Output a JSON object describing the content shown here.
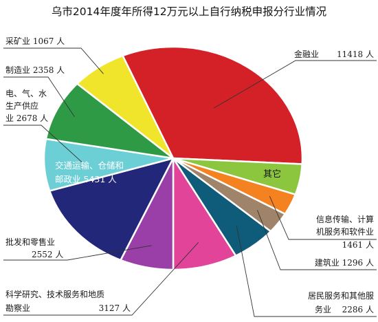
{
  "chart_data": {
    "type": "pie",
    "title": "乌市2014年度年所得12万元以上自行纳税申报分行业情况",
    "unit": "人",
    "slices": [
      {
        "key": "finance",
        "label": "金融业",
        "value": 11418,
        "color": "#d42027"
      },
      {
        "key": "other",
        "label": "其它",
        "value": null,
        "color": "#8cc63f"
      },
      {
        "key": "it",
        "label": "信息传输、计算机服务和软件业",
        "value": 1461,
        "color": "#f58220"
      },
      {
        "key": "construct",
        "label": "建筑业",
        "value": 1296,
        "color": "#a0846a"
      },
      {
        "key": "resident",
        "label": "居民服务和其他服务业",
        "value": 2286,
        "color": "#0f5b7a"
      },
      {
        "key": "science",
        "label": "科学研究、技术服务和地质勘察业",
        "value": 3127,
        "color": "#e2449a"
      },
      {
        "key": "wholesale",
        "label": "批发和零售业",
        "value": 2552,
        "color": "#9b3fa8"
      },
      {
        "key": "transport",
        "label": "交通运输、仓储和邮政业",
        "value": 5431,
        "color": "#23277a"
      },
      {
        "key": "utility",
        "label": "电、气、水生产供应业",
        "value": 2678,
        "color": "#6dcfd6"
      },
      {
        "key": "manufact",
        "label": "制造业",
        "value": 2358,
        "color": "#2f9a46"
      },
      {
        "key": "mining",
        "label": "采矿业",
        "value": 1067,
        "color": "#f0e52a"
      }
    ]
  },
  "labels": {
    "mining": [
      "采矿业  1067 人"
    ],
    "manufact": [
      "制造业  2358 人"
    ],
    "utility": [
      "电、气、水",
      "生产供应",
      "业 2678 人"
    ],
    "transport": [
      "交通运输、仓储和",
      "邮政业  5431 人"
    ],
    "wholesale": [
      "批发和零售业",
      "2552 人"
    ],
    "science": [
      "科学研究、技术服务和地质",
      "勘察业",
      "3127 人"
    ],
    "resident": [
      "居民服务和其他服",
      "务业",
      "2286 人"
    ],
    "construct": [
      "建筑业 1296 人"
    ],
    "it": [
      "信息传输、计算",
      "机服务和软件业",
      "1461 人"
    ],
    "other": [
      "其它"
    ],
    "finance": [
      "金融业",
      "11418 人"
    ]
  }
}
